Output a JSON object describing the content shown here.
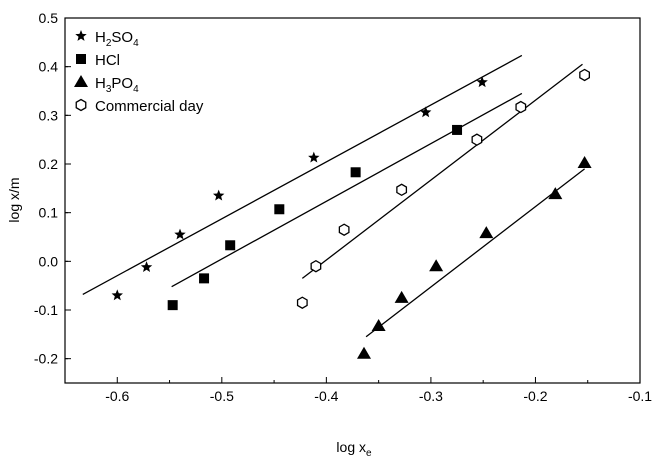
{
  "chart_data": {
    "type": "scatter",
    "title": "",
    "xlabel": "log x",
    "xlabel_sub": "e",
    "ylabel": "log x/m",
    "xlim": [
      -0.65,
      -0.1
    ],
    "ylim": [
      -0.25,
      0.5
    ],
    "xticks": [
      -0.6,
      -0.5,
      -0.4,
      -0.3,
      -0.2,
      -0.1
    ],
    "xtick_labels": [
      "-0.6",
      "-0.5",
      "-0.4",
      "-0.3",
      "-0.2",
      "-0.1"
    ],
    "yticks": [
      -0.2,
      -0.1,
      0.0,
      0.1,
      0.2,
      0.3,
      0.4,
      0.5
    ],
    "ytick_labels": [
      "-0.2",
      "-0.1",
      "0.0",
      "0.1",
      "0.2",
      "0.3",
      "0.4",
      "0.5"
    ],
    "grid": false,
    "legend_position": "top-left",
    "series": [
      {
        "name": "H2SO4",
        "label_parts": [
          "H",
          "2",
          "SO",
          "4"
        ],
        "marker": "star",
        "color": "#000000",
        "points": [
          [
            -0.6,
            -0.07
          ],
          [
            -0.572,
            -0.012
          ],
          [
            -0.54,
            0.055
          ],
          [
            -0.503,
            0.135
          ],
          [
            -0.412,
            0.213
          ],
          [
            -0.305,
            0.306
          ],
          [
            -0.251,
            0.368
          ]
        ],
        "fit": [
          [
            -0.633,
            -0.068
          ],
          [
            -0.213,
            0.423
          ]
        ]
      },
      {
        "name": "HCl",
        "label_parts": [
          "HCl"
        ],
        "marker": "square",
        "color": "#000000",
        "points": [
          [
            -0.547,
            -0.09
          ],
          [
            -0.517,
            -0.035
          ],
          [
            -0.492,
            0.033
          ],
          [
            -0.445,
            0.107
          ],
          [
            -0.372,
            0.183
          ],
          [
            -0.275,
            0.27
          ]
        ],
        "fit": [
          [
            -0.548,
            -0.052
          ],
          [
            -0.213,
            0.345
          ]
        ]
      },
      {
        "name": "H3PO4",
        "label_parts": [
          "H",
          "3",
          "PO",
          "4"
        ],
        "marker": "triangle",
        "color": "#000000",
        "points": [
          [
            -0.364,
            -0.19
          ],
          [
            -0.35,
            -0.133
          ],
          [
            -0.328,
            -0.075
          ],
          [
            -0.295,
            -0.01
          ],
          [
            -0.247,
            0.058
          ],
          [
            -0.181,
            0.138
          ],
          [
            -0.153,
            0.202
          ]
        ],
        "fit": [
          [
            -0.362,
            -0.155
          ],
          [
            -0.153,
            0.19
          ]
        ]
      },
      {
        "name": "Commercial day",
        "label_parts": [
          "Commercial day"
        ],
        "marker": "hexagon",
        "color": "#000000",
        "points": [
          [
            -0.423,
            -0.085
          ],
          [
            -0.41,
            -0.01
          ],
          [
            -0.383,
            0.065
          ],
          [
            -0.328,
            0.147
          ],
          [
            -0.256,
            0.25
          ],
          [
            -0.214,
            0.317
          ],
          [
            -0.153,
            0.383
          ]
        ],
        "fit": [
          [
            -0.423,
            -0.035
          ],
          [
            -0.155,
            0.405
          ]
        ]
      }
    ]
  }
}
